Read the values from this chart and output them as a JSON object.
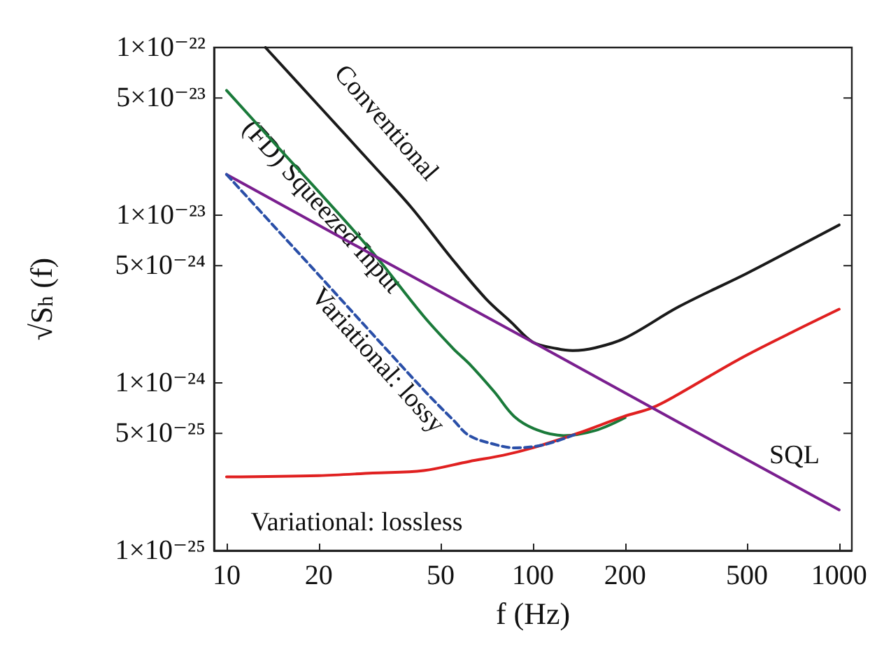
{
  "chart_data": {
    "type": "line",
    "xlabel": "f (Hz)",
    "ylabel": "√S$_{h}$ (f)",
    "log": "xy",
    "grid": false,
    "legend": false,
    "marker": "none",
    "xlim": [
      9.1,
      1100
    ],
    "ylim": [
      1e-25,
      1e-22
    ],
    "xticks": [
      10,
      20,
      50,
      100,
      200,
      500,
      1000
    ],
    "yticks": [
      {
        "value": 1e-25,
        "label": "1×10⁻²⁵"
      },
      {
        "value": 5e-25,
        "label": "5×10⁻²⁵"
      },
      {
        "value": 1e-24,
        "label": "1×10⁻²⁴"
      },
      {
        "value": 5e-24,
        "label": "5×10⁻²⁴"
      },
      {
        "value": 1e-23,
        "label": "1×10⁻²³"
      },
      {
        "value": 5e-23,
        "label": "5×10⁻²³"
      },
      {
        "value": 1e-22,
        "label": "1×10⁻²²"
      }
    ],
    "series": [
      {
        "name": "Conventional",
        "color": "#1a1a1a",
        "x": [
          13.4,
          20,
          30,
          40,
          54,
          70,
          85,
          100,
          120,
          135,
          160,
          200,
          300,
          500,
          700,
          1000
        ],
        "values": [
          1e-22,
          4.5e-23,
          2e-23,
          1.12e-23,
          5.6e-24,
          3.2e-24,
          2.3e-24,
          1.75e-24,
          1.6e-24,
          1.56e-24,
          1.62e-24,
          1.85e-24,
          2.85e-24,
          4.5e-24,
          6.2e-24,
          8.75e-24
        ]
      },
      {
        "name": "(FD) Squeezed Input",
        "color": "#1a7a3a",
        "x": [
          10,
          15,
          20,
          30,
          44,
          55,
          62,
          75,
          87,
          103,
          126,
          160,
          200
        ],
        "values": [
          5.55e-23,
          2.45e-23,
          1.38e-23,
          6e-24,
          2.5e-24,
          1.6e-24,
          1.3e-24,
          8.8e-25,
          6.3e-25,
          5.25e-25,
          4.85e-25,
          5.2e-25,
          6.2e-25
        ]
      },
      {
        "name": "Variational: lossy",
        "color": "#2a4fa8",
        "line_style": "dashed",
        "x": [
          10,
          15,
          20,
          30,
          45,
          55,
          62,
          75,
          87,
          110,
          140
        ],
        "values": [
          1.75e-23,
          7.8e-24,
          4.4e-24,
          1.95e-24,
          8.7e-25,
          6e-25,
          4.85e-25,
          4.3e-25,
          4.1e-25,
          4.3e-25,
          5e-25
        ]
      },
      {
        "name": "Variational: lossless",
        "color": "#e02020",
        "x": [
          10,
          20,
          30,
          44,
          62,
          80,
          100,
          140,
          198,
          245,
          300,
          470,
          700,
          1000
        ],
        "values": [
          2.75e-25,
          2.8e-25,
          2.9e-25,
          3e-25,
          3.4e-25,
          3.7e-25,
          4.1e-25,
          5e-25,
          6.3e-25,
          7.1e-25,
          8.6e-25,
          1.38e-24,
          2e-24,
          2.75e-24
        ]
      },
      {
        "name": "SQL",
        "color": "#7a1f8f",
        "x": [
          10,
          30,
          100,
          300,
          1000
        ],
        "values": [
          1.75e-23,
          5.8e-24,
          1.75e-24,
          5.8e-25,
          1.75e-25
        ]
      }
    ]
  }
}
